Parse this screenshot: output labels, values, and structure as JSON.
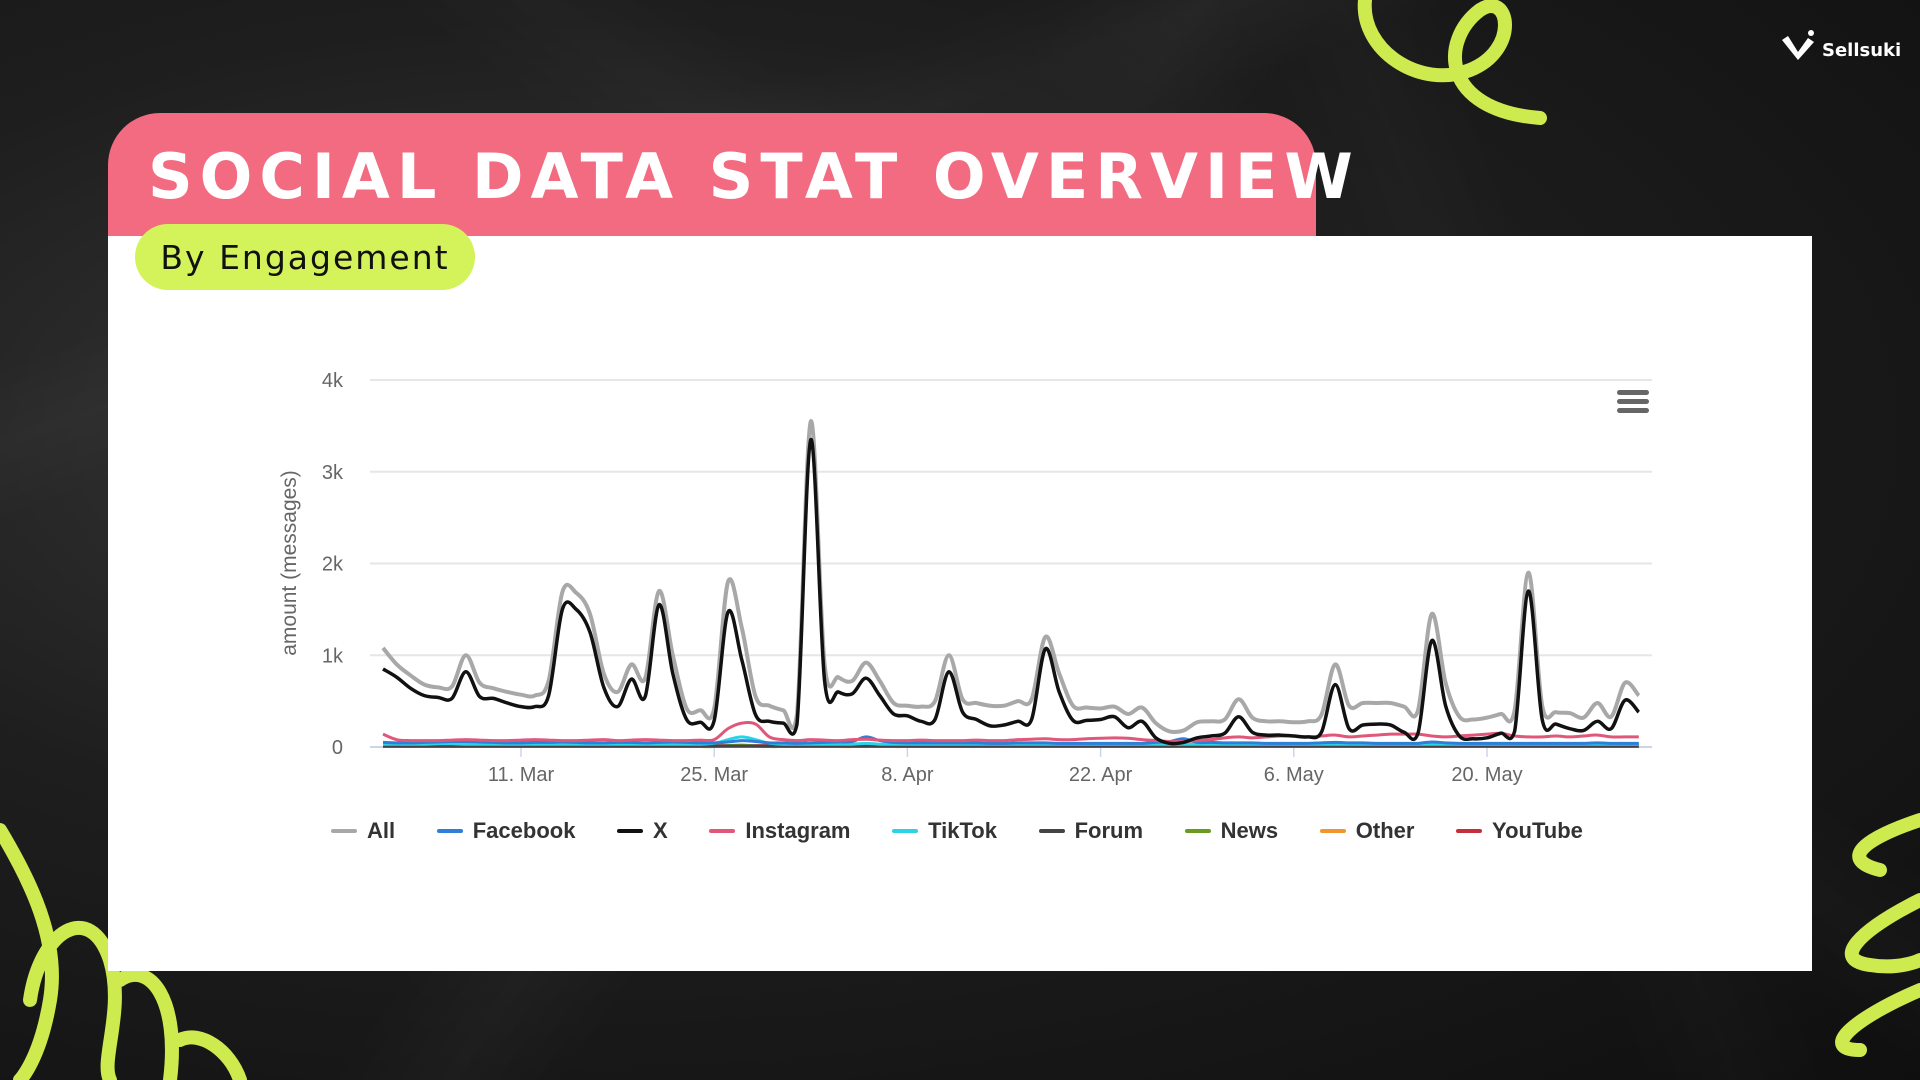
{
  "header": {
    "title": "SOCIAL DATA STAT OVERVIEW",
    "subtitle": "By Engagement",
    "logo_text": "Sellsuki"
  },
  "colors": {
    "banner": "#f26b80",
    "accent_green": "#d4f25a",
    "card": "#ffffff"
  },
  "menu_icon": "hamburger-menu-icon",
  "chart_data": {
    "type": "line",
    "title": "",
    "xlabel": "",
    "ylabel": "amount (messages)",
    "ylim": [
      0,
      4000
    ],
    "yticks": [
      {
        "v": 0,
        "label": "0"
      },
      {
        "v": 1000,
        "label": "1k"
      },
      {
        "v": 2000,
        "label": "2k"
      },
      {
        "v": 3000,
        "label": "3k"
      },
      {
        "v": 4000,
        "label": "4k"
      }
    ],
    "xrange": [
      "1 Mar",
      "31 May"
    ],
    "xticks": [
      {
        "i": 10,
        "label": "11. Mar"
      },
      {
        "i": 24,
        "label": "25. Mar"
      },
      {
        "i": 38,
        "label": "8. Apr"
      },
      {
        "i": 52,
        "label": "22. Apr"
      },
      {
        "i": 66,
        "label": "6. May"
      },
      {
        "i": 80,
        "label": "20. May"
      }
    ],
    "x_start": "1 Mar",
    "x_step": "1 day",
    "grid": true,
    "legend": "bottom",
    "series": [
      {
        "name": "All",
        "color": "#a8a8a8",
        "values": [
          1080,
          900,
          780,
          680,
          650,
          660,
          1000,
          700,
          640,
          600,
          570,
          560,
          720,
          1690,
          1680,
          1450,
          800,
          600,
          900,
          750,
          1700,
          1000,
          420,
          400,
          420,
          1800,
          1300,
          550,
          450,
          400,
          360,
          3550,
          900,
          760,
          720,
          920,
          720,
          480,
          450,
          440,
          500,
          1000,
          520,
          480,
          450,
          450,
          500,
          520,
          1200,
          800,
          450,
          430,
          420,
          440,
          360,
          430,
          260,
          170,
          180,
          270,
          280,
          300,
          520,
          320,
          280,
          280,
          270,
          280,
          350,
          900,
          450,
          480,
          480,
          480,
          440,
          400,
          1450,
          700,
          330,
          300,
          320,
          360,
          400,
          1900,
          450,
          380,
          370,
          320,
          480,
          330,
          700,
          560
        ]
      },
      {
        "name": "Facebook",
        "color": "#2f7ed8",
        "values": [
          50,
          45,
          45,
          50,
          55,
          60,
          60,
          55,
          50,
          45,
          45,
          50,
          50,
          55,
          50,
          45,
          45,
          50,
          50,
          45,
          50,
          55,
          50,
          45,
          45,
          55,
          70,
          60,
          45,
          45,
          40,
          45,
          50,
          55,
          60,
          110,
          70,
          50,
          45,
          45,
          45,
          45,
          45,
          45,
          40,
          40,
          45,
          45,
          45,
          40,
          40,
          40,
          40,
          40,
          40,
          40,
          50,
          60,
          90,
          50,
          50,
          45,
          45,
          45,
          40,
          40,
          40,
          40,
          45,
          50,
          45,
          45,
          40,
          40,
          40,
          40,
          55,
          45,
          40,
          40,
          40,
          40,
          40,
          40,
          40,
          40,
          40,
          40,
          45,
          40,
          40,
          40
        ]
      },
      {
        "name": "X",
        "color": "#111111",
        "values": [
          850,
          760,
          640,
          560,
          540,
          530,
          820,
          550,
          530,
          480,
          440,
          440,
          560,
          1500,
          1500,
          1250,
          650,
          440,
          740,
          550,
          1550,
          800,
          300,
          270,
          290,
          1470,
          950,
          350,
          280,
          260,
          250,
          3350,
          720,
          600,
          580,
          750,
          560,
          360,
          340,
          280,
          300,
          820,
          380,
          300,
          230,
          240,
          280,
          300,
          1070,
          600,
          290,
          290,
          300,
          330,
          210,
          280,
          100,
          40,
          50,
          100,
          120,
          150,
          330,
          160,
          130,
          130,
          120,
          110,
          160,
          680,
          200,
          240,
          250,
          240,
          160,
          150,
          1160,
          450,
          120,
          90,
          100,
          150,
          170,
          1700,
          300,
          250,
          200,
          180,
          280,
          200,
          510,
          380
        ]
      },
      {
        "name": "Instagram",
        "color": "#e0577a",
        "values": [
          140,
          80,
          70,
          70,
          70,
          75,
          80,
          75,
          70,
          70,
          75,
          80,
          75,
          70,
          70,
          75,
          80,
          70,
          75,
          80,
          75,
          70,
          70,
          75,
          80,
          200,
          260,
          250,
          110,
          80,
          70,
          80,
          75,
          70,
          80,
          85,
          75,
          70,
          70,
          75,
          70,
          70,
          70,
          75,
          70,
          70,
          80,
          85,
          90,
          80,
          80,
          90,
          95,
          100,
          95,
          80,
          70,
          60,
          60,
          70,
          80,
          100,
          110,
          100,
          110,
          120,
          120,
          110,
          120,
          130,
          110,
          120,
          130,
          140,
          140,
          140,
          120,
          110,
          120,
          130,
          140,
          150,
          120,
          110,
          110,
          120,
          110,
          120,
          130,
          110,
          110,
          110
        ]
      },
      {
        "name": "TikTok",
        "color": "#2bd3e6",
        "values": [
          30,
          30,
          30,
          30,
          35,
          35,
          30,
          30,
          30,
          30,
          30,
          30,
          30,
          30,
          30,
          30,
          30,
          30,
          30,
          30,
          30,
          30,
          30,
          30,
          40,
          80,
          110,
          80,
          40,
          30,
          30,
          30,
          30,
          30,
          30,
          40,
          30,
          30,
          30,
          30,
          30,
          30,
          30,
          30,
          30,
          30,
          30,
          30,
          30,
          30,
          30,
          30,
          30,
          30,
          30,
          30,
          30,
          30,
          30,
          30,
          30,
          30,
          30,
          30,
          30,
          30,
          30,
          30,
          30,
          30,
          30,
          30,
          30,
          30,
          30,
          30,
          30,
          30,
          30,
          30,
          30,
          30,
          30,
          30,
          30,
          30,
          30,
          30,
          30,
          30,
          30,
          30
        ]
      },
      {
        "name": "Forum",
        "color": "#434348",
        "values": [
          10,
          10,
          10,
          10,
          10,
          10,
          10,
          10,
          10,
          10,
          10,
          10,
          10,
          10,
          10,
          10,
          10,
          10,
          10,
          10,
          10,
          10,
          10,
          10,
          10,
          10,
          10,
          10,
          10,
          10,
          10,
          10,
          10,
          10,
          10,
          10,
          10,
          10,
          10,
          10,
          10,
          10,
          10,
          10,
          10,
          10,
          10,
          10,
          10,
          10,
          10,
          10,
          10,
          10,
          10,
          10,
          10,
          10,
          10,
          10,
          10,
          10,
          10,
          10,
          10,
          10,
          10,
          10,
          10,
          10,
          10,
          10,
          10,
          10,
          10,
          10,
          10,
          10,
          10,
          10,
          10,
          10,
          10,
          10,
          10,
          10,
          10,
          10,
          10,
          10,
          10,
          10
        ]
      },
      {
        "name": "News",
        "color": "#6a9a1f",
        "values": [
          5,
          5,
          5,
          5,
          5,
          5,
          5,
          5,
          5,
          5,
          5,
          5,
          5,
          5,
          5,
          5,
          5,
          5,
          5,
          5,
          5,
          5,
          5,
          5,
          5,
          15,
          20,
          10,
          5,
          5,
          5,
          5,
          5,
          5,
          5,
          5,
          5,
          5,
          5,
          5,
          5,
          5,
          5,
          5,
          5,
          5,
          5,
          5,
          5,
          5,
          5,
          5,
          5,
          5,
          5,
          5,
          5,
          5,
          5,
          5,
          5,
          5,
          5,
          5,
          5,
          5,
          5,
          5,
          5,
          5,
          5,
          5,
          5,
          5,
          5,
          5,
          5,
          5,
          5,
          5,
          5,
          5,
          5,
          5,
          5,
          5,
          5,
          5,
          5,
          5,
          5,
          5
        ]
      },
      {
        "name": "Other",
        "color": "#f0962f",
        "values": [
          5,
          5,
          5,
          5,
          5,
          5,
          5,
          5,
          5,
          5,
          5,
          5,
          5,
          5,
          5,
          5,
          5,
          5,
          5,
          5,
          5,
          5,
          5,
          5,
          5,
          5,
          5,
          5,
          5,
          5,
          5,
          5,
          5,
          5,
          5,
          20,
          10,
          5,
          5,
          5,
          5,
          5,
          5,
          5,
          5,
          5,
          5,
          5,
          5,
          5,
          5,
          5,
          5,
          5,
          5,
          5,
          5,
          5,
          5,
          5,
          5,
          5,
          5,
          5,
          5,
          5,
          5,
          5,
          5,
          5,
          5,
          5,
          5,
          5,
          5,
          5,
          5,
          5,
          5,
          5,
          5,
          5,
          5,
          5,
          5,
          5,
          5,
          5,
          5,
          5,
          5,
          5
        ]
      },
      {
        "name": "YouTube",
        "color": "#c42f3a",
        "values": [
          15,
          15,
          15,
          15,
          15,
          15,
          15,
          15,
          15,
          15,
          15,
          15,
          15,
          15,
          15,
          15,
          15,
          15,
          15,
          15,
          15,
          15,
          15,
          15,
          15,
          15,
          15,
          15,
          15,
          15,
          15,
          15,
          15,
          15,
          15,
          15,
          15,
          15,
          15,
          15,
          15,
          15,
          15,
          15,
          15,
          15,
          15,
          15,
          15,
          15,
          15,
          15,
          15,
          15,
          15,
          15,
          15,
          15,
          15,
          15,
          15,
          15,
          15,
          15,
          15,
          15,
          15,
          15,
          15,
          15,
          15,
          15,
          15,
          15,
          15,
          15,
          15,
          15,
          15,
          15,
          15,
          15,
          15,
          15,
          15,
          15,
          15,
          15,
          15,
          15,
          15,
          15
        ]
      }
    ]
  }
}
